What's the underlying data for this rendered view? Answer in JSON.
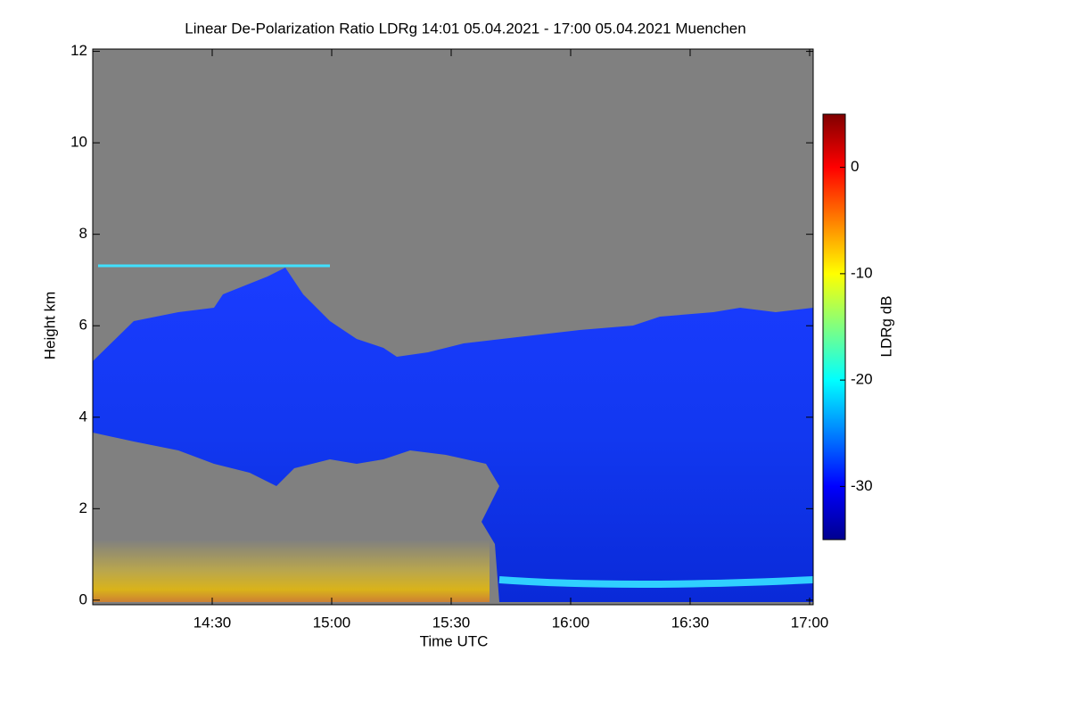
{
  "chart_data": {
    "type": "heatmap",
    "title": "Linear De-Polarization Ratio LDRg   14:01 05.04.2021 - 17:00 05.04.2021 Muenchen",
    "x_label": "Time UTC",
    "y_label": "Height km",
    "xlim": [
      14.0,
      17.015
    ],
    "xticks": [
      {
        "value": 14.5,
        "label": "14:30"
      },
      {
        "value": 15,
        "label": "15:00"
      },
      {
        "value": 15.5,
        "label": "15:30"
      },
      {
        "value": 16,
        "label": "16:00"
      },
      {
        "value": 16.5,
        "label": "16:30"
      },
      {
        "value": 17,
        "label": "17:00"
      }
    ],
    "ylim": [
      -0.1,
      12.05
    ],
    "yticks": [
      0,
      2,
      4,
      6,
      8,
      10,
      12
    ],
    "colorbar": {
      "label": "LDRg dB",
      "lim": [
        -35,
        5
      ],
      "ticks": [
        0,
        -10,
        -20,
        -30
      ],
      "colors": [
        "#00008f",
        "#0000ff",
        "#0080ff",
        "#00ffff",
        "#80ff80",
        "#ffff00",
        "#ff8000",
        "#ff0000",
        "#800000"
      ]
    },
    "grid": false
  }
}
